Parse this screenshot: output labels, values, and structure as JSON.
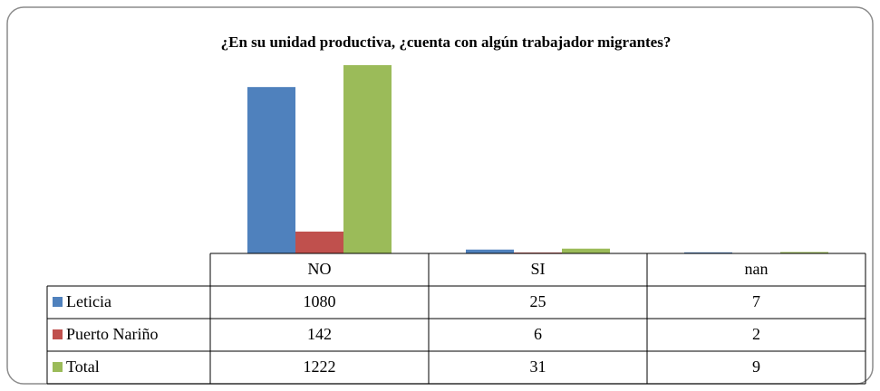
{
  "chart_data": {
    "type": "bar",
    "title": "¿En su unidad productiva, ¿cuenta con algún trabajador migrantes?",
    "categories": [
      "NO",
      "SI",
      "nan"
    ],
    "series": [
      {
        "name": "Leticia",
        "color": "#4f81bd",
        "values": [
          1080,
          25,
          7
        ]
      },
      {
        "name": "Puerto Nariño",
        "color": "#c0504d",
        "values": [
          142,
          6,
          2
        ]
      },
      {
        "name": "Total",
        "color": "#9bbb59",
        "values": [
          1222,
          31,
          9
        ]
      }
    ]
  }
}
